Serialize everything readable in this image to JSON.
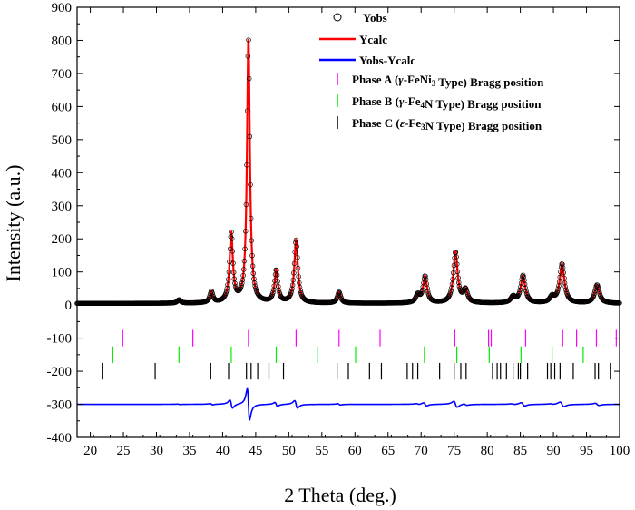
{
  "chart_data": {
    "type": "line",
    "xlabel": "2 Theta (deg.)",
    "ylabel": "Intensity (a.u.)",
    "xlim": [
      18,
      100
    ],
    "ylim": [
      -400,
      900
    ],
    "xticks": [
      20,
      25,
      30,
      35,
      40,
      45,
      50,
      55,
      60,
      65,
      70,
      75,
      80,
      85,
      90,
      95,
      100
    ],
    "yticks": [
      -400,
      -300,
      -200,
      -100,
      0,
      100,
      200,
      300,
      400,
      500,
      600,
      700,
      800,
      900
    ],
    "grid": false,
    "legend_position": "top-right",
    "colors": {
      "yobs": "#000000",
      "ycalc": "#ff0000",
      "diff": "#0000ff",
      "phase_a": "#ff00ff",
      "phase_b": "#00ee00",
      "phase_c": "#000000"
    },
    "background": 5,
    "peaks": [
      {
        "x": 33.4,
        "height": 10,
        "width": 0.3
      },
      {
        "x": 38.3,
        "height": 33,
        "width": 0.28
      },
      {
        "x": 41.3,
        "height": 207,
        "width": 0.3
      },
      {
        "x": 43.9,
        "height": 797,
        "width": 0.26
      },
      {
        "x": 48.1,
        "height": 97,
        "width": 0.3
      },
      {
        "x": 51.1,
        "height": 190,
        "width": 0.32
      },
      {
        "x": 57.6,
        "height": 33,
        "width": 0.3
      },
      {
        "x": 69.5,
        "height": 23,
        "width": 0.35
      },
      {
        "x": 70.6,
        "height": 80,
        "width": 0.35
      },
      {
        "x": 75.2,
        "height": 153,
        "width": 0.38
      },
      {
        "x": 76.7,
        "height": 37,
        "width": 0.38
      },
      {
        "x": 83.9,
        "height": 18,
        "width": 0.4
      },
      {
        "x": 85.4,
        "height": 83,
        "width": 0.4
      },
      {
        "x": 89.8,
        "height": 17,
        "width": 0.4
      },
      {
        "x": 91.3,
        "height": 118,
        "width": 0.42
      },
      {
        "x": 96.6,
        "height": 55,
        "width": 0.42
      }
    ],
    "series": [
      {
        "name": "Yobs"
      },
      {
        "name": "Ycalc"
      },
      {
        "name": "Yobs-Ycalc",
        "offset": -300
      }
    ],
    "phases": [
      {
        "name_pre": "Phase A (",
        "name_greek": "γ",
        "name_parts": [
          [
            "-FeNi",
            ""
          ],
          [
            "3",
            "sub"
          ],
          [
            " Type)",
            ""
          ]
        ],
        "suffix": "Bragg position",
        "y_center": -100,
        "positions": [
          24.9,
          35.5,
          43.9,
          51.1,
          57.6,
          63.8,
          75.1,
          80.2,
          80.6,
          85.8,
          91.4,
          93.5,
          96.5,
          99.5
        ]
      },
      {
        "name_pre": "Phase B (",
        "name_greek": "γ",
        "name_parts": [
          [
            "-Fe",
            ""
          ],
          [
            "4",
            "sub"
          ],
          [
            "N Type)",
            ""
          ]
        ],
        "suffix": "Bragg position",
        "y_center": -150,
        "positions": [
          23.4,
          33.4,
          41.3,
          48.1,
          54.3,
          60.1,
          70.5,
          75.4,
          80.3,
          85.1,
          89.8,
          94.5
        ]
      },
      {
        "name_pre": "Phase C (",
        "name_greek": "ε",
        "name_parts": [
          [
            "-Fe",
            ""
          ],
          [
            "3",
            "sub"
          ],
          [
            "N Type)",
            ""
          ]
        ],
        "suffix": "Bragg position",
        "y_center": -200,
        "positions": [
          21.8,
          29.8,
          38.2,
          40.9,
          43.6,
          44.3,
          45.3,
          47.0,
          49.2,
          57.3,
          59.0,
          62.2,
          64.0,
          67.9,
          68.7,
          69.5,
          72.8,
          75.0,
          76.0,
          76.8,
          80.8,
          81.5,
          82.0,
          82.9,
          83.9,
          84.7,
          85.0,
          86.1,
          89.1,
          89.6,
          90.2,
          91.0,
          93.0,
          96.3,
          96.8,
          98.6
        ]
      }
    ]
  }
}
